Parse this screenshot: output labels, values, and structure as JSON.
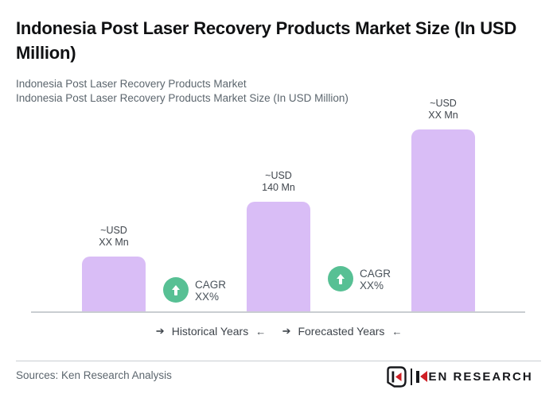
{
  "page": {
    "title": "Indonesia Post Laser Recovery Products Market Size (In USD Million)",
    "subtitle_line1": "Indonesia Post Laser Recovery Products Market",
    "subtitle_line2": "Indonesia Post Laser Recovery Products Market Size (In USD Million)"
  },
  "chart_data": {
    "type": "bar",
    "title": "Indonesia Post Laser Recovery Products Market Size (In USD Million)",
    "unit": "USD Million",
    "bar_color": "#d9bdf6",
    "badge_color": "#57c094",
    "value_axis_visible": false,
    "baseline_visible": true,
    "bars": [
      {
        "value_label_line1": "~USD",
        "value_label_line2": "XX Mn",
        "value_mn_est": 71,
        "period": "Historical Years"
      },
      {
        "value_label_line1": "~USD",
        "value_label_line2": "140 Mn",
        "value_mn_est": 140,
        "period": "Historical Years"
      },
      {
        "value_label_line1": "~USD",
        "value_label_line2": "XX Mn",
        "value_mn_est": 231,
        "period": "Forecasted Years"
      }
    ],
    "cagr_badges": [
      {
        "line1": "CAGR",
        "line2": "XX%"
      },
      {
        "line1": "CAGR",
        "line2": "XX%"
      }
    ],
    "x_group_labels": [
      {
        "arrow_before": "➔",
        "label": "Historical Years",
        "arrow_after": "←"
      },
      {
        "arrow_before": "➔",
        "label": "Forecasted Years",
        "arrow_after": "←"
      }
    ]
  },
  "footer": {
    "sources": "Sources: Ken Research Analysis",
    "logo_wordmark_rest": "EN RESEARCH"
  }
}
